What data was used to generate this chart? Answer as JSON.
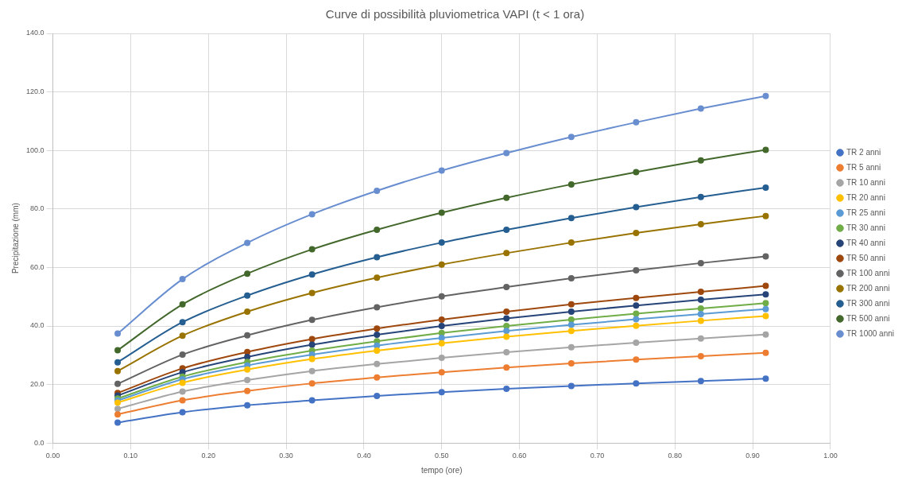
{
  "chart_data": {
    "type": "line",
    "title": "Curve di possibilità pluviometrica VAPI (t < 1 ora)",
    "xlabel": "tempo (ore)",
    "ylabel": "Precipitazione (mm)",
    "x": [
      0.0833,
      0.1667,
      0.25,
      0.3333,
      0.4167,
      0.5,
      0.5833,
      0.6667,
      0.75,
      0.8333,
      0.9167
    ],
    "xlim": [
      0,
      1
    ],
    "xticks": [
      {
        "value": 0,
        "label": "0.00"
      },
      {
        "value": 0.1,
        "label": "0.10"
      },
      {
        "value": 0.2,
        "label": "0.20"
      },
      {
        "value": 0.3,
        "label": "0.30"
      },
      {
        "value": 0.4,
        "label": "0.40"
      },
      {
        "value": 0.5,
        "label": "0.50"
      },
      {
        "value": 0.6,
        "label": "0.60"
      },
      {
        "value": 0.7,
        "label": "0.70"
      },
      {
        "value": 0.8,
        "label": "0.80"
      },
      {
        "value": 0.9,
        "label": "0.90"
      },
      {
        "value": 1,
        "label": "1.00"
      }
    ],
    "ylim": [
      0,
      140
    ],
    "yticks": [
      {
        "value": 0,
        "label": "0.0"
      },
      {
        "value": 20,
        "label": "20.0"
      },
      {
        "value": 40,
        "label": "40.0"
      },
      {
        "value": 60,
        "label": "60.0"
      },
      {
        "value": 80,
        "label": "80.0"
      },
      {
        "value": 100,
        "label": "100.0"
      },
      {
        "value": 120,
        "label": "120.0"
      },
      {
        "value": 140,
        "label": "140.0"
      }
    ],
    "grid": true,
    "legend": "right",
    "marker": "circle",
    "line_style": "solid",
    "series": [
      {
        "name": "TR 2 anni",
        "color": "#4472c4",
        "values": [
          7.0,
          10.5,
          12.9,
          14.6,
          16.1,
          17.4,
          18.5,
          19.5,
          20.4,
          21.2,
          22.0
        ]
      },
      {
        "name": "TR 5 anni",
        "color": "#ed7d31",
        "values": [
          9.8,
          14.6,
          17.8,
          20.4,
          22.4,
          24.2,
          25.8,
          27.2,
          28.5,
          29.7,
          30.8
        ]
      },
      {
        "name": "TR 10 anni",
        "color": "#a5a5a5",
        "values": [
          11.7,
          17.6,
          21.5,
          24.6,
          27.0,
          29.1,
          31.0,
          32.7,
          34.3,
          35.7,
          37.1
        ]
      },
      {
        "name": "TR 20 anni",
        "color": "#ffc000",
        "values": [
          13.8,
          20.6,
          25.1,
          28.7,
          31.6,
          34.1,
          36.3,
          38.3,
          40.1,
          41.8,
          43.4
        ]
      },
      {
        "name": "TR 25 anni",
        "color": "#5b9bd5",
        "values": [
          14.5,
          21.8,
          26.5,
          30.2,
          33.3,
          35.9,
          38.3,
          40.4,
          42.3,
          44.1,
          45.8
        ]
      },
      {
        "name": "TR 30 anni",
        "color": "#70ad47",
        "values": [
          15.2,
          22.7,
          27.7,
          31.6,
          34.8,
          37.6,
          40.0,
          42.2,
          44.2,
          46.0,
          47.8
        ]
      },
      {
        "name": "TR 40 anni",
        "color": "#264478",
        "values": [
          16.2,
          24.2,
          29.4,
          33.6,
          37.0,
          40.0,
          42.6,
          44.9,
          47.0,
          49.0,
          50.8
        ]
      },
      {
        "name": "TR 50 anni",
        "color": "#9e480e",
        "values": [
          17.1,
          25.5,
          31.1,
          35.5,
          39.1,
          42.2,
          44.9,
          47.4,
          49.6,
          51.7,
          53.7
        ]
      },
      {
        "name": "TR 100 anni",
        "color": "#636363",
        "values": [
          20.2,
          30.2,
          36.8,
          42.1,
          46.4,
          50.1,
          53.3,
          56.3,
          59.0,
          61.5,
          63.8
        ]
      },
      {
        "name": "TR 200 anni",
        "color": "#997300",
        "values": [
          24.6,
          36.7,
          44.9,
          51.3,
          56.5,
          61.0,
          64.9,
          68.5,
          71.8,
          74.8,
          77.6
        ]
      },
      {
        "name": "TR 300 anni",
        "color": "#255e91",
        "values": [
          27.6,
          41.3,
          50.4,
          57.6,
          63.5,
          68.5,
          72.9,
          76.9,
          80.6,
          84.1,
          87.3
        ]
      },
      {
        "name": "TR 500 anni",
        "color": "#43682b",
        "values": [
          31.7,
          47.4,
          57.9,
          66.2,
          72.9,
          78.7,
          83.8,
          88.4,
          92.6,
          96.6,
          100.2
        ]
      },
      {
        "name": "TR 1000 anni",
        "color": "#698ed0",
        "values": [
          37.4,
          56.0,
          68.4,
          78.2,
          86.2,
          93.1,
          99.1,
          104.6,
          109.6,
          114.3,
          118.6
        ]
      }
    ]
  }
}
